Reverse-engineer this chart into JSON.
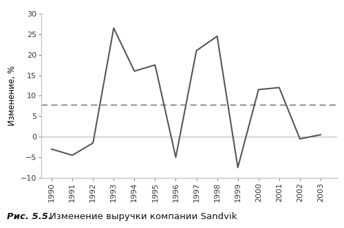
{
  "years": [
    1990,
    1991,
    1992,
    1993,
    1994,
    1995,
    1996,
    1997,
    1998,
    1999,
    2000,
    2001,
    2002,
    2003
  ],
  "values": [
    -3.0,
    -4.5,
    -1.5,
    26.5,
    16.0,
    17.5,
    -5.0,
    21.0,
    24.5,
    -7.5,
    11.5,
    12.0,
    -0.5,
    0.5
  ],
  "dashed_line_y": 7.8,
  "zero_line_y": 0,
  "ylim": [
    -10,
    30
  ],
  "yticks": [
    -10,
    -5,
    0,
    5,
    10,
    15,
    20,
    25,
    30
  ],
  "xlim_start": 1989.5,
  "xlim_end": 2003.8,
  "line_color": "#555555",
  "dashed_color": "#888888",
  "zero_color": "#bbbbbb",
  "ylabel": "Изменение, %",
  "caption_bold": "Рис. 5.5.",
  "caption_text": "Изменение выручки компании Sandvik",
  "background_color": "#ffffff",
  "line_width": 1.5,
  "dashed_linewidth": 1.3,
  "spine_color": "#bbbbbb"
}
